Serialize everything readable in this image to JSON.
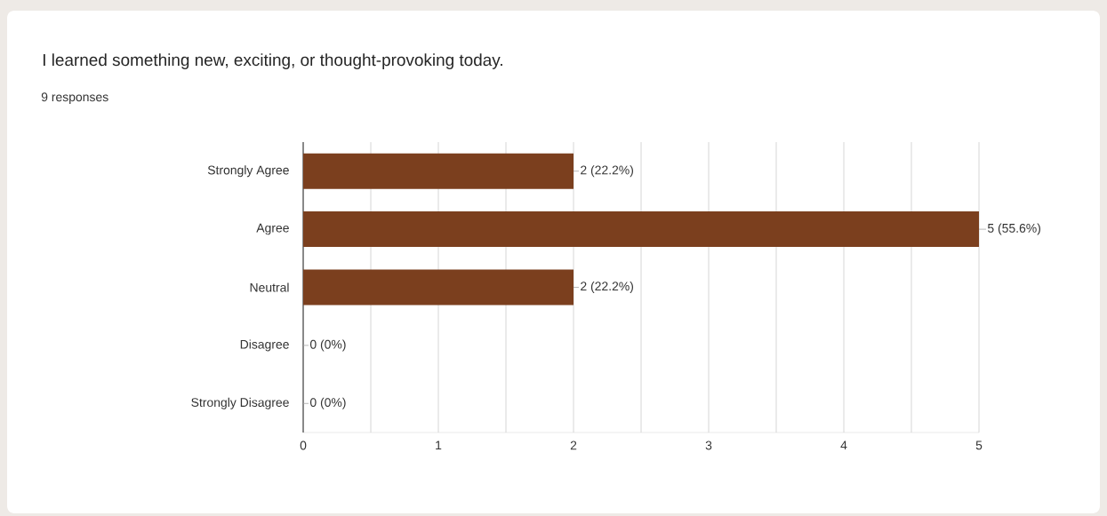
{
  "chart_data": {
    "type": "bar",
    "orientation": "horizontal",
    "title": "I learned something new, exciting, or thought-provoking today.",
    "subtitle": "9 responses",
    "categories": [
      "Strongly Agree",
      "Agree",
      "Neutral",
      "Disagree",
      "Strongly Disagree"
    ],
    "values": [
      2,
      5,
      2,
      0,
      0
    ],
    "value_labels": [
      "2 (22.2%)",
      "5 (55.6%)",
      "2 (22.2%)",
      "0 (0%)",
      "0 (0%)"
    ],
    "color": "#7b3f1e",
    "xlim": [
      0,
      5
    ],
    "xticks": [
      0,
      {
        "value": 0.5,
        "label": null
      },
      1,
      {
        "value": 1.5,
        "label": null
      },
      2,
      {
        "value": 2.5,
        "label": null
      },
      3,
      {
        "value": 3.5,
        "label": null
      },
      4,
      {
        "value": 4.5,
        "label": null
      },
      5
    ],
    "grid": "x"
  }
}
